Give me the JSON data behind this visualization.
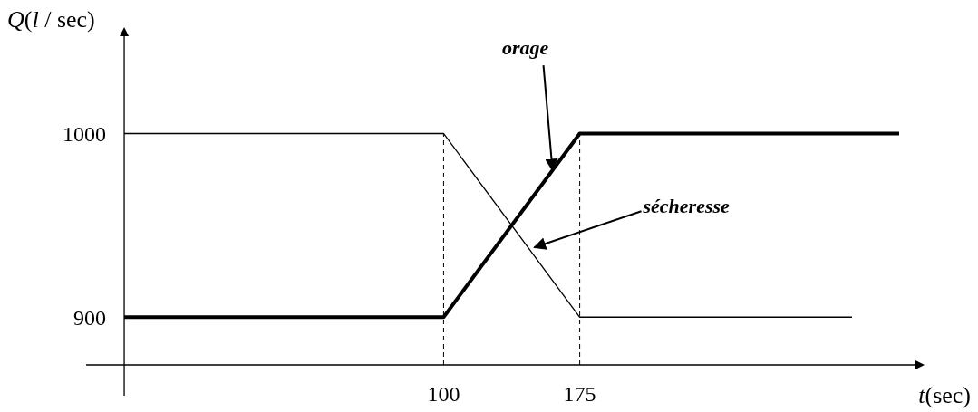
{
  "chart_data": {
    "type": "line",
    "xlabel": "t(sec)",
    "ylabel": "Q(l / sec)",
    "xlim": [
      -97,
      360
    ],
    "ylim": [
      874,
      1053
    ],
    "xticks": [
      100,
      175
    ],
    "yticks": [
      900,
      1000
    ],
    "grid": false,
    "marker": "none",
    "line_style": "solid",
    "series": [
      {
        "color": "#000000",
        "x": [
          -76,
          100,
          175,
          351
        ],
        "values": [
          900,
          900,
          1000,
          1000
        ]
      },
      {
        "color": "#000000",
        "x": [
          -76,
          100,
          175,
          325
        ],
        "values": [
          1000,
          1000,
          900,
          900
        ]
      }
    ],
    "ref_lines": [
      {
        "axis": "x",
        "value": 100,
        "line_style": "dashed"
      },
      {
        "axis": "x",
        "value": 175,
        "line_style": "dashed"
      }
    ],
    "annotations": [
      {
        "text": "orage",
        "x": 160,
        "y": 980
      },
      {
        "text": "sécheresse",
        "x": 150,
        "y": 938
      }
    ]
  }
}
